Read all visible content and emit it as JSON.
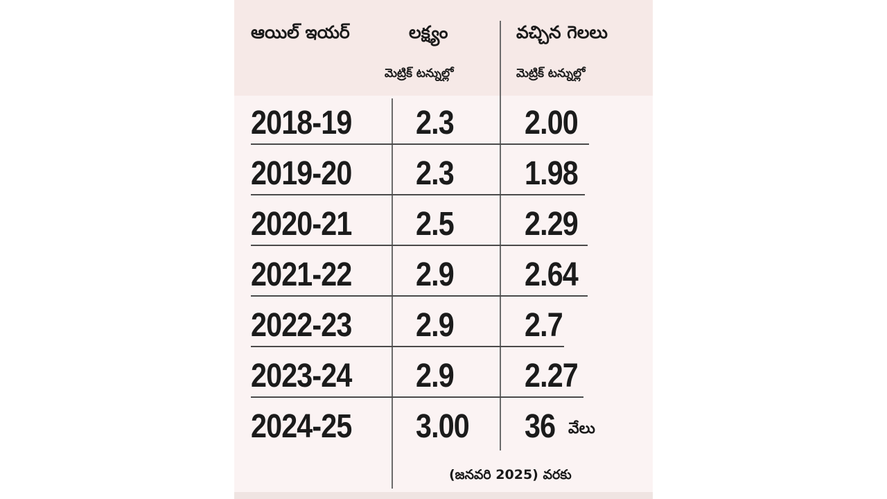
{
  "chart_data": {
    "type": "table",
    "columns": [
      "ఆయిల్ ఇయర్",
      "లక్ష్యం",
      "వచ్చిన గెలలు"
    ],
    "column_units": [
      "",
      "మెట్రిక్ టన్నుల్లో",
      "మెట్రిక్ టన్నుల్లో"
    ],
    "rows": [
      {
        "year": "2018-19",
        "target": "2.3",
        "received": "2.00",
        "received_unit": ""
      },
      {
        "year": "2019-20",
        "target": "2.3",
        "received": "1.98",
        "received_unit": ""
      },
      {
        "year": "2020-21",
        "target": "2.5",
        "received": "2.29",
        "received_unit": ""
      },
      {
        "year": "2021-22",
        "target": "2.9",
        "received": "2.64",
        "received_unit": ""
      },
      {
        "year": "2022-23",
        "target": "2.9",
        "received": "2.7",
        "received_unit": ""
      },
      {
        "year": "2023-24",
        "target": "2.9",
        "received": "2.27",
        "received_unit": ""
      },
      {
        "year": "2024-25",
        "target": "3.00",
        "received": "36",
        "received_unit": "వేలు"
      }
    ],
    "footnote": "(జనవరి 2025) వరకు"
  },
  "colors": {
    "header_background": "#f6e9e7",
    "panel_background": "#fbf3f3",
    "text": "#1b1b1b",
    "rules": "#4a4a4a"
  }
}
